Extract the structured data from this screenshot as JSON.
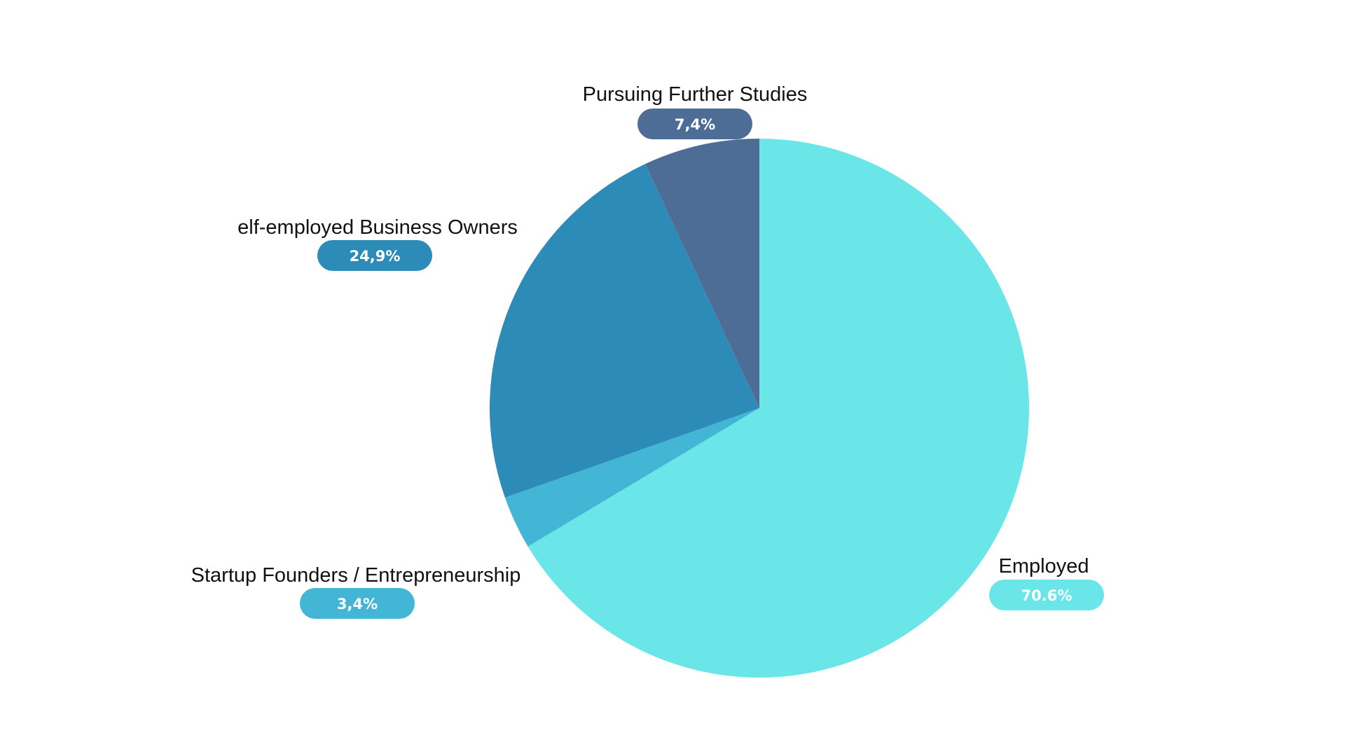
{
  "chart_data": {
    "type": "pie",
    "start_angle_deg": 0,
    "direction": "clockwise",
    "slices": [
      {
        "label": "Employed",
        "value": 70.6,
        "value_label": "70.6%",
        "color": "#6ae5e8"
      },
      {
        "label": "Startup Founders / Entrepreneurship",
        "value": 3.4,
        "value_label": "3,4%",
        "color": "#42b6d4"
      },
      {
        "label": "elf-employed Business Owners",
        "value": 24.9,
        "value_label": "24,9%",
        "color": "#2d8bb8"
      },
      {
        "label": "Pursuing Further Studies",
        "value": 7.4,
        "value_label": "7,4%",
        "color": "#4e6d96"
      }
    ]
  }
}
